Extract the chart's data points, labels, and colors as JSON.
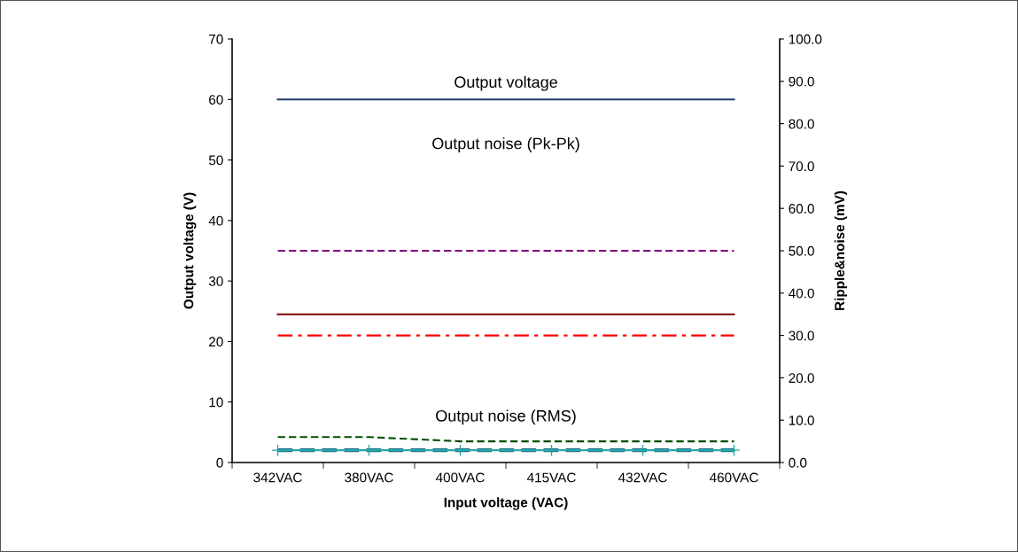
{
  "chart_data": {
    "type": "line",
    "xlabel": "Input voltage (VAC)",
    "ylabel": "Output voltage (V)",
    "y2label": "Ripple&noise (mV)",
    "categories": [
      "342VAC",
      "380VAC",
      "400VAC",
      "415VAC",
      "432VAC",
      "460VAC"
    ],
    "series": [
      {
        "color": "#1f3a68",
        "values": [
          60,
          60,
          60,
          60,
          60,
          60
        ],
        "line_style": "solid"
      },
      {
        "color": "#800080",
        "values": [
          50.0,
          50.0,
          50.0,
          50.0,
          50.0,
          50.0
        ],
        "axis": "y2",
        "line_style": "dashed"
      },
      {
        "color": "#7a0000",
        "values": [
          35.0,
          35.0,
          35.0,
          35.0,
          35.0,
          35.0
        ],
        "axis": "y2",
        "line_style": "solid"
      },
      {
        "color": "#ff0000",
        "values": [
          30.0,
          30.0,
          30.0,
          30.0,
          30.0,
          30.0
        ],
        "axis": "y2",
        "line_style": "dashdot"
      },
      {
        "color": "#004d00",
        "values": [
          6.0,
          6.0,
          5.0,
          5.0,
          5.0,
          5.0
        ],
        "axis": "y2",
        "line_style": "dashed"
      },
      {
        "color": "#1a6f8a",
        "values": [
          2.9,
          2.9,
          2.9,
          2.9,
          2.9,
          2.9
        ],
        "axis": "y2",
        "line_style": "dashed"
      },
      {
        "color": "#2aa5a5",
        "values": [
          2.9,
          2.9,
          2.9,
          2.9,
          2.9,
          2.9
        ],
        "axis": "y2",
        "line_style": "solid",
        "marker": "cross"
      }
    ],
    "ylim": [
      0,
      70
    ],
    "yticks": [
      0,
      10,
      20,
      30,
      40,
      50,
      60,
      70
    ],
    "y2lim": [
      0,
      100
    ],
    "y2ticks": [
      {
        "value": 0,
        "label": "0.0"
      },
      {
        "value": 10,
        "label": "10.0"
      },
      {
        "value": 20,
        "label": "20.0"
      },
      {
        "value": 30,
        "label": "30.0"
      },
      {
        "value": 40,
        "label": "40.0"
      },
      {
        "value": 50,
        "label": "50.0"
      },
      {
        "value": 60,
        "label": "60.0"
      },
      {
        "value": 70,
        "label": "70.0"
      },
      {
        "value": 80,
        "label": "80.0"
      },
      {
        "value": 90,
        "label": "90.0"
      },
      {
        "value": 100,
        "label": "100.0"
      }
    ],
    "annotations": [
      "Output voltage",
      "Output noise (Pk-Pk)",
      "Output noise (RMS)"
    ],
    "grid": false,
    "legend": false
  }
}
